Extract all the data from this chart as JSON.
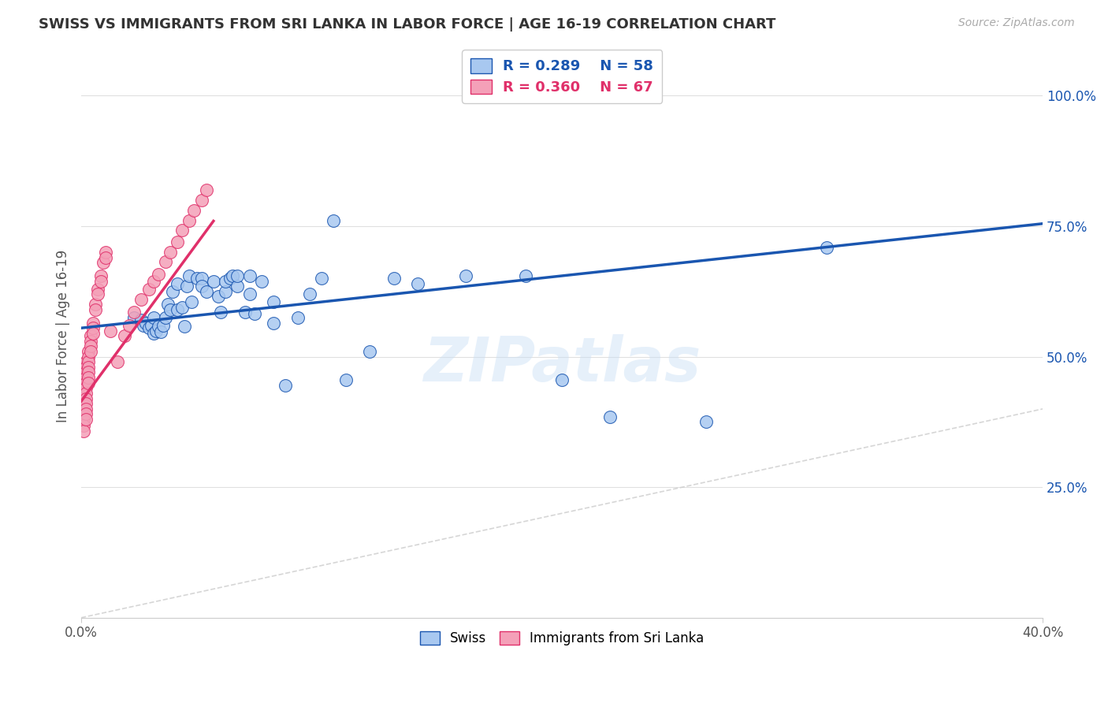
{
  "title": "SWISS VS IMMIGRANTS FROM SRI LANKA IN LABOR FORCE | AGE 16-19 CORRELATION CHART",
  "source": "Source: ZipAtlas.com",
  "ylabel": "In Labor Force | Age 16-19",
  "xlim": [
    0.0,
    0.4
  ],
  "ylim": [
    0.0,
    1.08
  ],
  "right_yticks": [
    0.25,
    0.5,
    0.75,
    1.0
  ],
  "right_yticklabels": [
    "25.0%",
    "50.0%",
    "75.0%",
    "100.0%"
  ],
  "swiss_R": 0.289,
  "swiss_N": 58,
  "sri_lanka_R": 0.36,
  "sri_lanka_N": 67,
  "swiss_color": "#a8c8f0",
  "swiss_trend_color": "#1a56b0",
  "sri_lanka_color": "#f4a0b8",
  "sri_lanka_trend_color": "#e0306a",
  "watermark": "ZIPatlas",
  "swiss_x": [
    0.022,
    0.025,
    0.026,
    0.027,
    0.028,
    0.029,
    0.03,
    0.03,
    0.031,
    0.032,
    0.033,
    0.034,
    0.035,
    0.036,
    0.037,
    0.038,
    0.04,
    0.04,
    0.042,
    0.043,
    0.044,
    0.045,
    0.046,
    0.048,
    0.05,
    0.05,
    0.052,
    0.055,
    0.057,
    0.058,
    0.06,
    0.06,
    0.062,
    0.063,
    0.065,
    0.065,
    0.068,
    0.07,
    0.07,
    0.072,
    0.075,
    0.08,
    0.08,
    0.085,
    0.09,
    0.095,
    0.1,
    0.105,
    0.11,
    0.12,
    0.13,
    0.14,
    0.16,
    0.185,
    0.2,
    0.22,
    0.26,
    0.31
  ],
  "swiss_y": [
    0.575,
    0.57,
    0.56,
    0.565,
    0.555,
    0.56,
    0.545,
    0.575,
    0.55,
    0.558,
    0.548,
    0.56,
    0.575,
    0.6,
    0.59,
    0.625,
    0.59,
    0.64,
    0.595,
    0.558,
    0.635,
    0.655,
    0.605,
    0.65,
    0.65,
    0.635,
    0.625,
    0.645,
    0.615,
    0.585,
    0.625,
    0.645,
    0.65,
    0.655,
    0.635,
    0.655,
    0.585,
    0.62,
    0.655,
    0.582,
    0.645,
    0.605,
    0.565,
    0.445,
    0.575,
    0.62,
    0.65,
    0.76,
    0.455,
    0.51,
    0.65,
    0.64,
    0.655,
    0.655,
    0.455,
    0.385,
    0.375,
    0.71
  ],
  "sri_lanka_x": [
    0.001,
    0.001,
    0.001,
    0.001,
    0.001,
    0.001,
    0.001,
    0.001,
    0.001,
    0.001,
    0.001,
    0.001,
    0.001,
    0.001,
    0.001,
    0.002,
    0.002,
    0.002,
    0.002,
    0.002,
    0.002,
    0.002,
    0.002,
    0.002,
    0.002,
    0.002,
    0.002,
    0.003,
    0.003,
    0.003,
    0.003,
    0.003,
    0.003,
    0.003,
    0.004,
    0.004,
    0.004,
    0.004,
    0.005,
    0.005,
    0.005,
    0.006,
    0.006,
    0.007,
    0.007,
    0.008,
    0.008,
    0.009,
    0.01,
    0.01,
    0.012,
    0.015,
    0.018,
    0.02,
    0.022,
    0.025,
    0.028,
    0.03,
    0.032,
    0.035,
    0.037,
    0.04,
    0.042,
    0.045,
    0.047,
    0.05,
    0.052
  ],
  "sri_lanka_y": [
    0.48,
    0.47,
    0.46,
    0.455,
    0.448,
    0.44,
    0.435,
    0.425,
    0.415,
    0.408,
    0.398,
    0.388,
    0.378,
    0.368,
    0.358,
    0.49,
    0.48,
    0.47,
    0.46,
    0.45,
    0.44,
    0.43,
    0.42,
    0.41,
    0.4,
    0.39,
    0.38,
    0.51,
    0.5,
    0.49,
    0.48,
    0.47,
    0.46,
    0.45,
    0.54,
    0.53,
    0.52,
    0.51,
    0.565,
    0.555,
    0.545,
    0.6,
    0.59,
    0.63,
    0.62,
    0.655,
    0.645,
    0.68,
    0.7,
    0.69,
    0.55,
    0.49,
    0.54,
    0.56,
    0.585,
    0.61,
    0.63,
    0.645,
    0.658,
    0.682,
    0.7,
    0.72,
    0.742,
    0.76,
    0.78,
    0.8,
    0.82
  ],
  "swiss_trend_x0": 0.0,
  "swiss_trend_y0": 0.555,
  "swiss_trend_x1": 0.4,
  "swiss_trend_y1": 0.755,
  "sri_trend_x0": 0.0,
  "sri_trend_y0": 0.415,
  "sri_trend_x1": 0.055,
  "sri_trend_y1": 0.76
}
